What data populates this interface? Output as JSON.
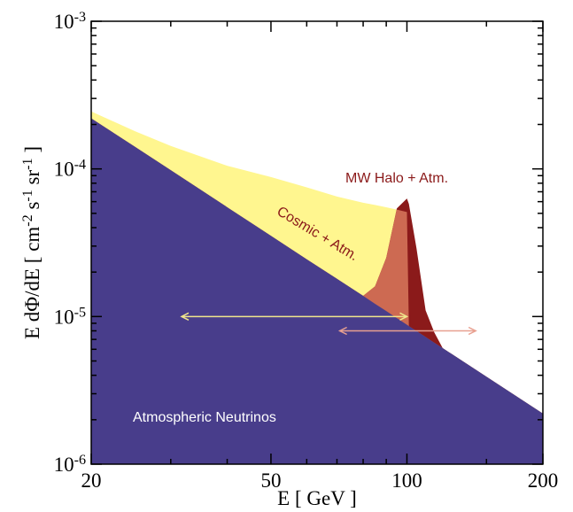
{
  "chart_data": {
    "type": "area",
    "log_x": true,
    "log_y": true,
    "xlabel": "E [ GeV ]",
    "ylabel": "E dΦ/dE  [ cm^-2 s^-1 sr^-1 ]",
    "x": [
      20,
      25,
      30,
      40,
      50,
      60,
      70,
      80,
      85,
      90,
      95,
      100,
      101,
      105,
      110,
      115,
      120,
      150,
      200
    ],
    "series": [
      {
        "name": "Cosmic + Atm.",
        "color": "#fff68f",
        "label_color": "#8b1a1a",
        "values": [
          0.000245,
          0.00018,
          0.000143,
          0.000105,
          8.8e-05,
          7.5e-05,
          6.5e-05,
          5.9e-05,
          5.7e-05,
          5.5e-05,
          5.3e-05,
          5.1e-05,
          8.62e-06,
          7.98e-06,
          7.27e-06,
          6.65e-06,
          6.11e-06,
          3.91e-06,
          2.2e-06
        ]
      },
      {
        "name": "MW Halo + Atm.",
        "color": "#8b1a1a",
        "label_color": "#8b1a1a",
        "values": [
          0.00022,
          0.000141,
          9.8e-05,
          5.5e-05,
          3.52e-05,
          2.44e-05,
          1.8e-05,
          1.38e-05,
          1.6e-05,
          2.5e-05,
          5.4e-05,
          6.3e-05,
          5.8e-05,
          2.9e-05,
          1.1e-05,
          7.8e-06,
          6.11e-06,
          3.91e-06,
          2.2e-06
        ]
      },
      {
        "name": "Atmospheric Neutrinos",
        "color": "#483d8b",
        "label_color": "#ffffff",
        "values": [
          0.00022,
          0.000141,
          9.8e-05,
          5.5e-05,
          3.52e-05,
          2.44e-05,
          1.8e-05,
          1.38e-05,
          1.22e-05,
          1.09e-05,
          9.75e-06,
          8.8e-06,
          8.62e-06,
          7.98e-06,
          7.27e-06,
          6.65e-06,
          6.11e-06,
          3.91e-06,
          2.2e-06
        ]
      }
    ],
    "overlap_color": "#cd6a52",
    "arrows": [
      {
        "x": [
          31.7,
          100
        ],
        "y": 1e-05,
        "color": "#f0e68c"
      },
      {
        "x": [
          71,
          142
        ],
        "y": 8e-06,
        "color": "#e8a090"
      }
    ],
    "xlim": [
      20,
      200
    ],
    "ylim": [
      1e-06,
      0.001
    ],
    "xticks": [
      20,
      50,
      100,
      200
    ],
    "xticks_minor": [
      30,
      40,
      60,
      70,
      80,
      90,
      150
    ],
    "yticks": [
      {
        "value": 1e-06,
        "label": "10^-6"
      },
      {
        "value": 1e-05,
        "label": "10^-5"
      },
      {
        "value": 0.0001,
        "label": "10^-4"
      },
      {
        "value": 0.001,
        "label": "10^-3"
      }
    ],
    "yticks_minor": [
      2e-06,
      3e-06,
      4e-06,
      5e-06,
      6e-06,
      7e-06,
      8e-06,
      9e-06,
      2e-05,
      3e-05,
      4e-05,
      5e-05,
      6e-05,
      7e-05,
      8e-05,
      9e-05,
      0.0002,
      0.0003,
      0.0004,
      0.0005,
      0.0006,
      0.0007,
      0.0008,
      0.0009
    ]
  }
}
